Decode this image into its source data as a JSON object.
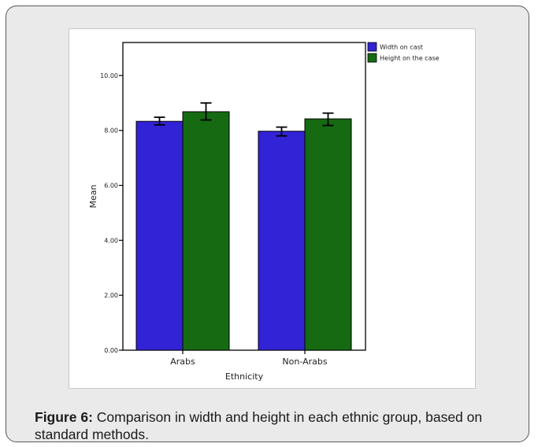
{
  "caption": {
    "label": "Figure 6:",
    "text": " Comparison in width and height in each ethnic group, based on standard methods."
  },
  "chart_data": {
    "type": "bar",
    "xlabel": "Ethnicity",
    "ylabel": "Mean",
    "ylim": [
      0,
      11.2
    ],
    "yticks": [
      0,
      2,
      4,
      6,
      8,
      10
    ],
    "ytick_labels": [
      "0.00",
      "2.00",
      "4.00",
      "6.00",
      "8.00",
      "10.00"
    ],
    "categories": [
      "Arabs",
      "Non-Arabs"
    ],
    "series": [
      {
        "name": "Width on cast",
        "color": "#3323d6",
        "values": [
          8.33,
          7.97
        ],
        "error_low": [
          8.2,
          7.8
        ],
        "error_high": [
          8.48,
          8.12
        ]
      },
      {
        "name": "Height on the case",
        "color": "#166a12",
        "values": [
          8.68,
          8.42
        ],
        "error_low": [
          8.38,
          8.18
        ],
        "error_high": [
          9.0,
          8.63
        ]
      }
    ],
    "legend_position": "top-right",
    "error_bars": true,
    "grid": false
  }
}
